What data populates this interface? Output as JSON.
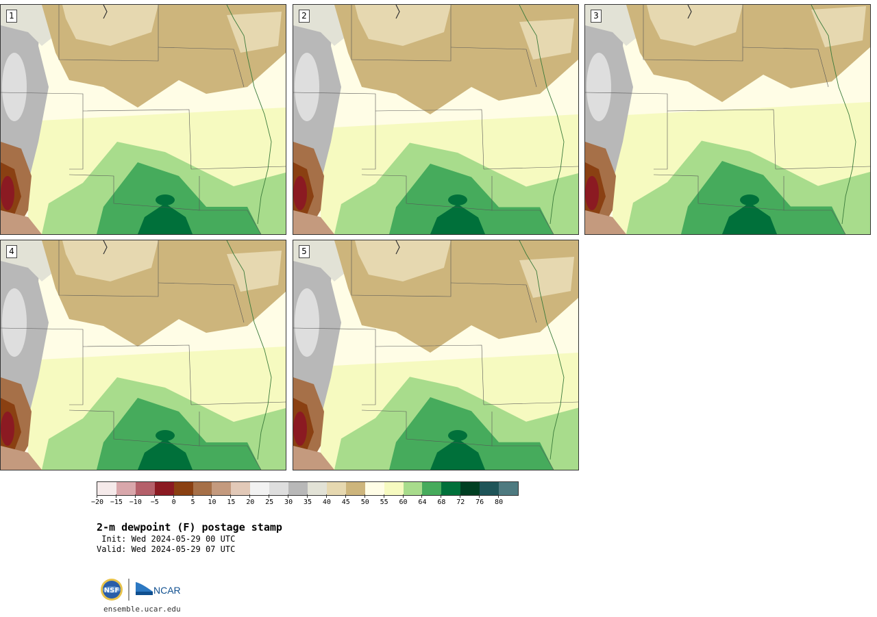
{
  "panels": [
    {
      "label": "1"
    },
    {
      "label": "2"
    },
    {
      "label": "3"
    },
    {
      "label": "4"
    },
    {
      "label": "5"
    }
  ],
  "colorbar": {
    "colors": [
      "#f5eaea",
      "#d9a7ab",
      "#b5606a",
      "#8b1a22",
      "#8a4012",
      "#a67048",
      "#c49a7e",
      "#e2c9b8",
      "#f2f2f2",
      "#dedede",
      "#b8b8b8",
      "#e2e2d6",
      "#e6d8b0",
      "#cdb57c",
      "#fffde6",
      "#f6fac0",
      "#a8dc8c",
      "#46ab5c",
      "#00703a",
      "#003f22",
      "#1e5458",
      "#4e7a80"
    ],
    "tick_labels": [
      "−20",
      "−15",
      "−10",
      "−5",
      "0",
      "5",
      "10",
      "15",
      "20",
      "25",
      "30",
      "35",
      "40",
      "45",
      "50",
      "55",
      "60",
      "64",
      "68",
      "72",
      "76",
      "80"
    ]
  },
  "title": "2-m dewpoint (F) postage stamp",
  "init": " Init: Wed 2024-05-29 00 UTC",
  "valid": "Valid: Wed 2024-05-29 07 UTC",
  "logo": {
    "nsf": "NSF",
    "ncar": "NCAR"
  },
  "url": "ensemble.ucar.edu"
}
